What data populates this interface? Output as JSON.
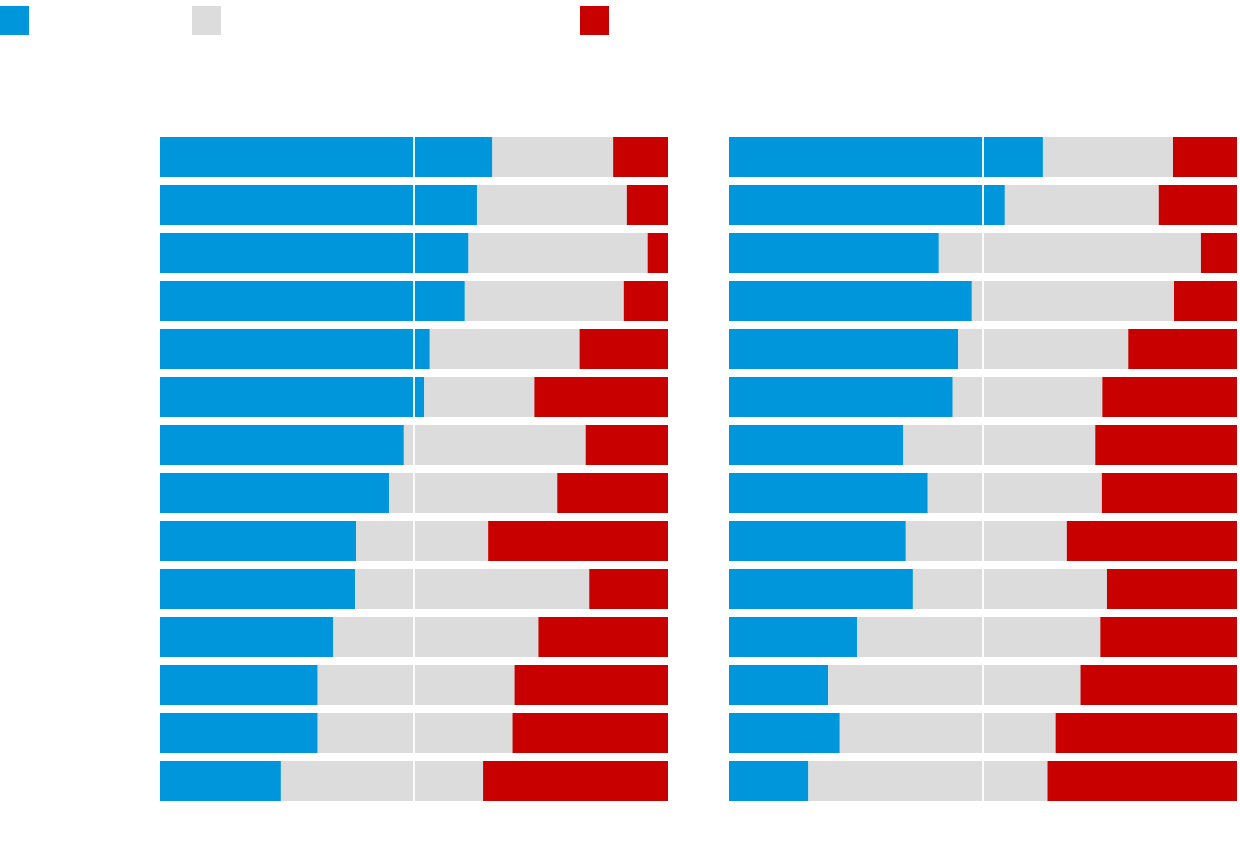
{
  "colors": {
    "positive": "#0096dc",
    "neutral": "#dcdcdc",
    "negative": "#c80000",
    "gridline": "#ffffff"
  },
  "legend": {
    "items": [
      {
        "key": "positive",
        "label": ""
      },
      {
        "key": "neutral",
        "label": ""
      },
      {
        "key": "negative",
        "label": ""
      }
    ]
  },
  "chart_data": [
    {
      "type": "bar",
      "orientation": "horizontal",
      "stacked": true,
      "normalized": true,
      "title": "",
      "xlabel": "",
      "ylabel": "",
      "xlim": [
        0,
        100
      ],
      "grid": true,
      "legend_position": "top-left",
      "categories": [
        "",
        "",
        "",
        "",
        "",
        "",
        "",
        "",
        "",
        "",
        "",
        "",
        "",
        ""
      ],
      "series": [
        {
          "color_key": "positive",
          "values": [
            65.4,
            62.4,
            60.7,
            60.0,
            53.1,
            52.0,
            48.0,
            45.1,
            38.6,
            38.4,
            34.1,
            31.0,
            31.0,
            23.8
          ]
        },
        {
          "color_key": "neutral",
          "values": [
            23.8,
            29.5,
            35.3,
            31.3,
            29.5,
            21.7,
            35.8,
            33.1,
            26.0,
            46.1,
            40.4,
            38.8,
            38.4,
            39.8
          ]
        },
        {
          "color_key": "negative",
          "values": [
            10.8,
            8.1,
            4.0,
            8.7,
            17.4,
            26.3,
            16.2,
            21.8,
            35.4,
            15.5,
            25.5,
            30.2,
            30.6,
            36.4
          ]
        }
      ]
    },
    {
      "type": "bar",
      "orientation": "horizontal",
      "stacked": true,
      "normalized": true,
      "title": "",
      "xlabel": "",
      "ylabel": "",
      "xlim": [
        0,
        100
      ],
      "grid": true,
      "legend_position": "top-left",
      "categories": [
        "",
        "",
        "",
        "",
        "",
        "",
        "",
        "",
        "",
        "",
        "",
        "",
        "",
        ""
      ],
      "series": [
        {
          "color_key": "positive",
          "values": [
            61.8,
            54.3,
            41.3,
            47.8,
            45.1,
            44.0,
            34.3,
            39.1,
            34.8,
            36.2,
            25.2,
            19.5,
            21.8,
            15.6
          ]
        },
        {
          "color_key": "neutral",
          "values": [
            25.6,
            30.3,
            51.6,
            39.8,
            33.5,
            29.5,
            37.8,
            34.3,
            31.7,
            38.2,
            47.9,
            49.7,
            42.5,
            47.1
          ]
        },
        {
          "color_key": "negative",
          "values": [
            12.6,
            15.4,
            7.1,
            12.4,
            21.4,
            26.5,
            27.9,
            26.6,
            33.5,
            25.6,
            26.9,
            30.8,
            35.7,
            37.3
          ]
        }
      ]
    }
  ]
}
